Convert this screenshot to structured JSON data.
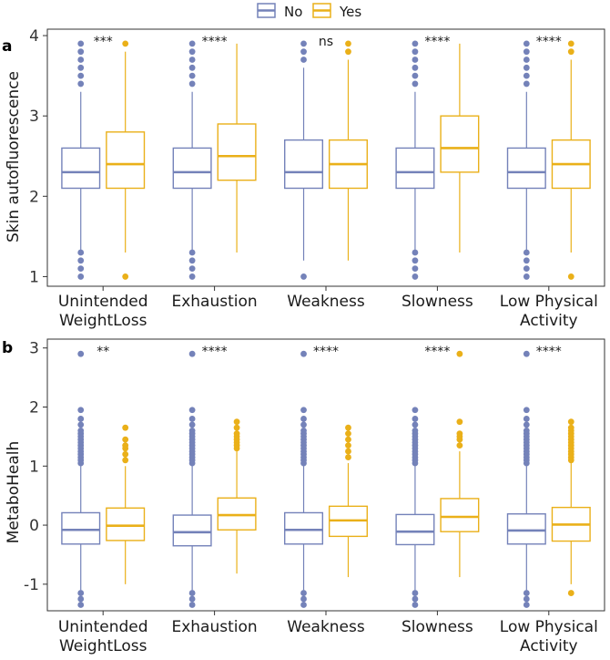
{
  "legend": {
    "items": [
      {
        "label": "No",
        "color": "#7482b9"
      },
      {
        "label": "Yes",
        "color": "#eab019"
      }
    ]
  },
  "chart_data": [
    {
      "type": "box",
      "panel_label": "a",
      "ylabel": "Skin autofluorescence",
      "ylim": [
        0.88,
        4.08
      ],
      "yticks": [
        1,
        2,
        3,
        4
      ],
      "categories": [
        "Unintended WeightLoss",
        "Exhaustion",
        "Weakness",
        "Slowness",
        "Low Physical Activity"
      ],
      "category_lines": [
        [
          "Unintended",
          "WeightLoss"
        ],
        [
          "Exhaustion"
        ],
        [
          "Weakness"
        ],
        [
          "Slowness"
        ],
        [
          "Low Physical",
          "Activity"
        ]
      ],
      "significance": [
        "***",
        "****",
        "ns",
        "****",
        "****"
      ],
      "series": [
        {
          "name": "No",
          "color": "#7482b9",
          "boxes": [
            {
              "lw": 1.3,
              "q1": 2.1,
              "med": 2.3,
              "q3": 2.6,
              "uw": 3.3,
              "outliers": [
                1.0,
                1.1,
                1.2,
                1.3,
                3.4,
                3.5,
                3.6,
                3.7,
                3.8,
                3.9
              ]
            },
            {
              "lw": 1.3,
              "q1": 2.1,
              "med": 2.3,
              "q3": 2.6,
              "uw": 3.3,
              "outliers": [
                1.0,
                1.1,
                1.2,
                1.3,
                3.4,
                3.5,
                3.6,
                3.7,
                3.8,
                3.9
              ]
            },
            {
              "lw": 1.2,
              "q1": 2.1,
              "med": 2.3,
              "q3": 2.7,
              "uw": 3.6,
              "outliers": [
                1.0,
                3.7,
                3.8,
                3.9
              ]
            },
            {
              "lw": 1.3,
              "q1": 2.1,
              "med": 2.3,
              "q3": 2.6,
              "uw": 3.3,
              "outliers": [
                1.0,
                1.1,
                1.2,
                1.3,
                3.4,
                3.5,
                3.6,
                3.7,
                3.8,
                3.9
              ]
            },
            {
              "lw": 1.3,
              "q1": 2.1,
              "med": 2.3,
              "q3": 2.6,
              "uw": 3.3,
              "outliers": [
                1.0,
                1.1,
                1.2,
                1.3,
                3.4,
                3.5,
                3.6,
                3.7,
                3.8,
                3.9
              ]
            }
          ]
        },
        {
          "name": "Yes",
          "color": "#eab019",
          "boxes": [
            {
              "lw": 1.3,
              "q1": 2.1,
              "med": 2.4,
              "q3": 2.8,
              "uw": 3.8,
              "outliers": [
                1.0,
                3.9
              ]
            },
            {
              "lw": 1.3,
              "q1": 2.2,
              "med": 2.5,
              "q3": 2.9,
              "uw": 3.9,
              "outliers": []
            },
            {
              "lw": 1.2,
              "q1": 2.1,
              "med": 2.4,
              "q3": 2.7,
              "uw": 3.7,
              "outliers": [
                3.8,
                3.9
              ]
            },
            {
              "lw": 1.3,
              "q1": 2.3,
              "med": 2.6,
              "q3": 3.0,
              "uw": 3.9,
              "outliers": []
            },
            {
              "lw": 1.3,
              "q1": 2.1,
              "med": 2.4,
              "q3": 2.7,
              "uw": 3.7,
              "outliers": [
                1.0,
                3.8,
                3.9
              ]
            }
          ]
        }
      ]
    },
    {
      "type": "box",
      "panel_label": "b",
      "ylabel": "MetaboHealh",
      "ylim": [
        -1.45,
        3.15
      ],
      "yticks": [
        -1,
        0,
        1,
        2,
        3
      ],
      "categories": [
        "Unintended WeightLoss",
        "Exhaustion",
        "Weakness",
        "Slowness",
        "Low Physical Activity"
      ],
      "category_lines": [
        [
          "Unintended",
          "WeightLoss"
        ],
        [
          "Exhaustion"
        ],
        [
          "Weakness"
        ],
        [
          "Slowness"
        ],
        [
          "Low Physical",
          "Activity"
        ]
      ],
      "significance": [
        "**",
        "****",
        "****",
        "****",
        "****"
      ],
      "series": [
        {
          "name": "No",
          "color": "#7482b9",
          "boxes": [
            {
              "lw": -1.1,
              "q1": -0.32,
              "med": -0.08,
              "q3": 0.21,
              "uw": 1.0,
              "outliers": [
                -1.35,
                -1.25,
                -1.15,
                1.05,
                1.1,
                1.15,
                1.2,
                1.25,
                1.3,
                1.35,
                1.4,
                1.45,
                1.5,
                1.55,
                1.6,
                1.7,
                1.8,
                1.95,
                2.9
              ]
            },
            {
              "lw": -1.1,
              "q1": -0.35,
              "med": -0.12,
              "q3": 0.17,
              "uw": 1.0,
              "outliers": [
                -1.35,
                -1.25,
                -1.15,
                1.05,
                1.1,
                1.15,
                1.2,
                1.25,
                1.3,
                1.35,
                1.4,
                1.45,
                1.5,
                1.55,
                1.6,
                1.7,
                1.8,
                1.95,
                2.9
              ]
            },
            {
              "lw": -1.1,
              "q1": -0.32,
              "med": -0.08,
              "q3": 0.21,
              "uw": 1.0,
              "outliers": [
                -1.35,
                -1.25,
                -1.15,
                1.05,
                1.1,
                1.15,
                1.2,
                1.25,
                1.3,
                1.35,
                1.4,
                1.45,
                1.5,
                1.55,
                1.6,
                1.7,
                1.8,
                1.95,
                2.9
              ]
            },
            {
              "lw": -1.1,
              "q1": -0.33,
              "med": -0.11,
              "q3": 0.18,
              "uw": 1.0,
              "outliers": [
                -1.35,
                -1.25,
                -1.15,
                1.05,
                1.1,
                1.15,
                1.2,
                1.25,
                1.3,
                1.35,
                1.4,
                1.45,
                1.5,
                1.55,
                1.6,
                1.7,
                1.8,
                1.95
              ]
            },
            {
              "lw": -1.1,
              "q1": -0.32,
              "med": -0.09,
              "q3": 0.19,
              "uw": 1.0,
              "outliers": [
                -1.35,
                -1.25,
                -1.15,
                1.05,
                1.1,
                1.15,
                1.2,
                1.25,
                1.3,
                1.35,
                1.4,
                1.45,
                1.5,
                1.55,
                1.6,
                1.7,
                1.8,
                1.95,
                2.9
              ]
            }
          ]
        },
        {
          "name": "Yes",
          "color": "#eab019",
          "boxes": [
            {
              "lw": -1.0,
              "q1": -0.26,
              "med": -0.01,
              "q3": 0.29,
              "uw": 1.0,
              "outliers": [
                1.1,
                1.2,
                1.3,
                1.35,
                1.45,
                1.65
              ]
            },
            {
              "lw": -0.82,
              "q1": -0.08,
              "med": 0.17,
              "q3": 0.46,
              "uw": 1.25,
              "outliers": [
                1.3,
                1.35,
                1.4,
                1.45,
                1.5,
                1.55,
                1.65,
                1.75
              ]
            },
            {
              "lw": -0.88,
              "q1": -0.19,
              "med": 0.08,
              "q3": 0.32,
              "uw": 1.05,
              "outliers": [
                1.15,
                1.25,
                1.35,
                1.45,
                1.55,
                1.65
              ]
            },
            {
              "lw": -0.88,
              "q1": -0.11,
              "med": 0.14,
              "q3": 0.45,
              "uw": 1.25,
              "outliers": [
                1.35,
                1.45,
                1.5,
                1.55,
                1.75,
                2.9
              ]
            },
            {
              "lw": -1.0,
              "q1": -0.27,
              "med": 0.01,
              "q3": 0.3,
              "uw": 1.05,
              "outliers": [
                -1.15,
                1.1,
                1.15,
                1.2,
                1.25,
                1.3,
                1.35,
                1.4,
                1.45,
                1.5,
                1.55,
                1.6,
                1.65,
                1.75
              ]
            }
          ]
        }
      ]
    }
  ]
}
